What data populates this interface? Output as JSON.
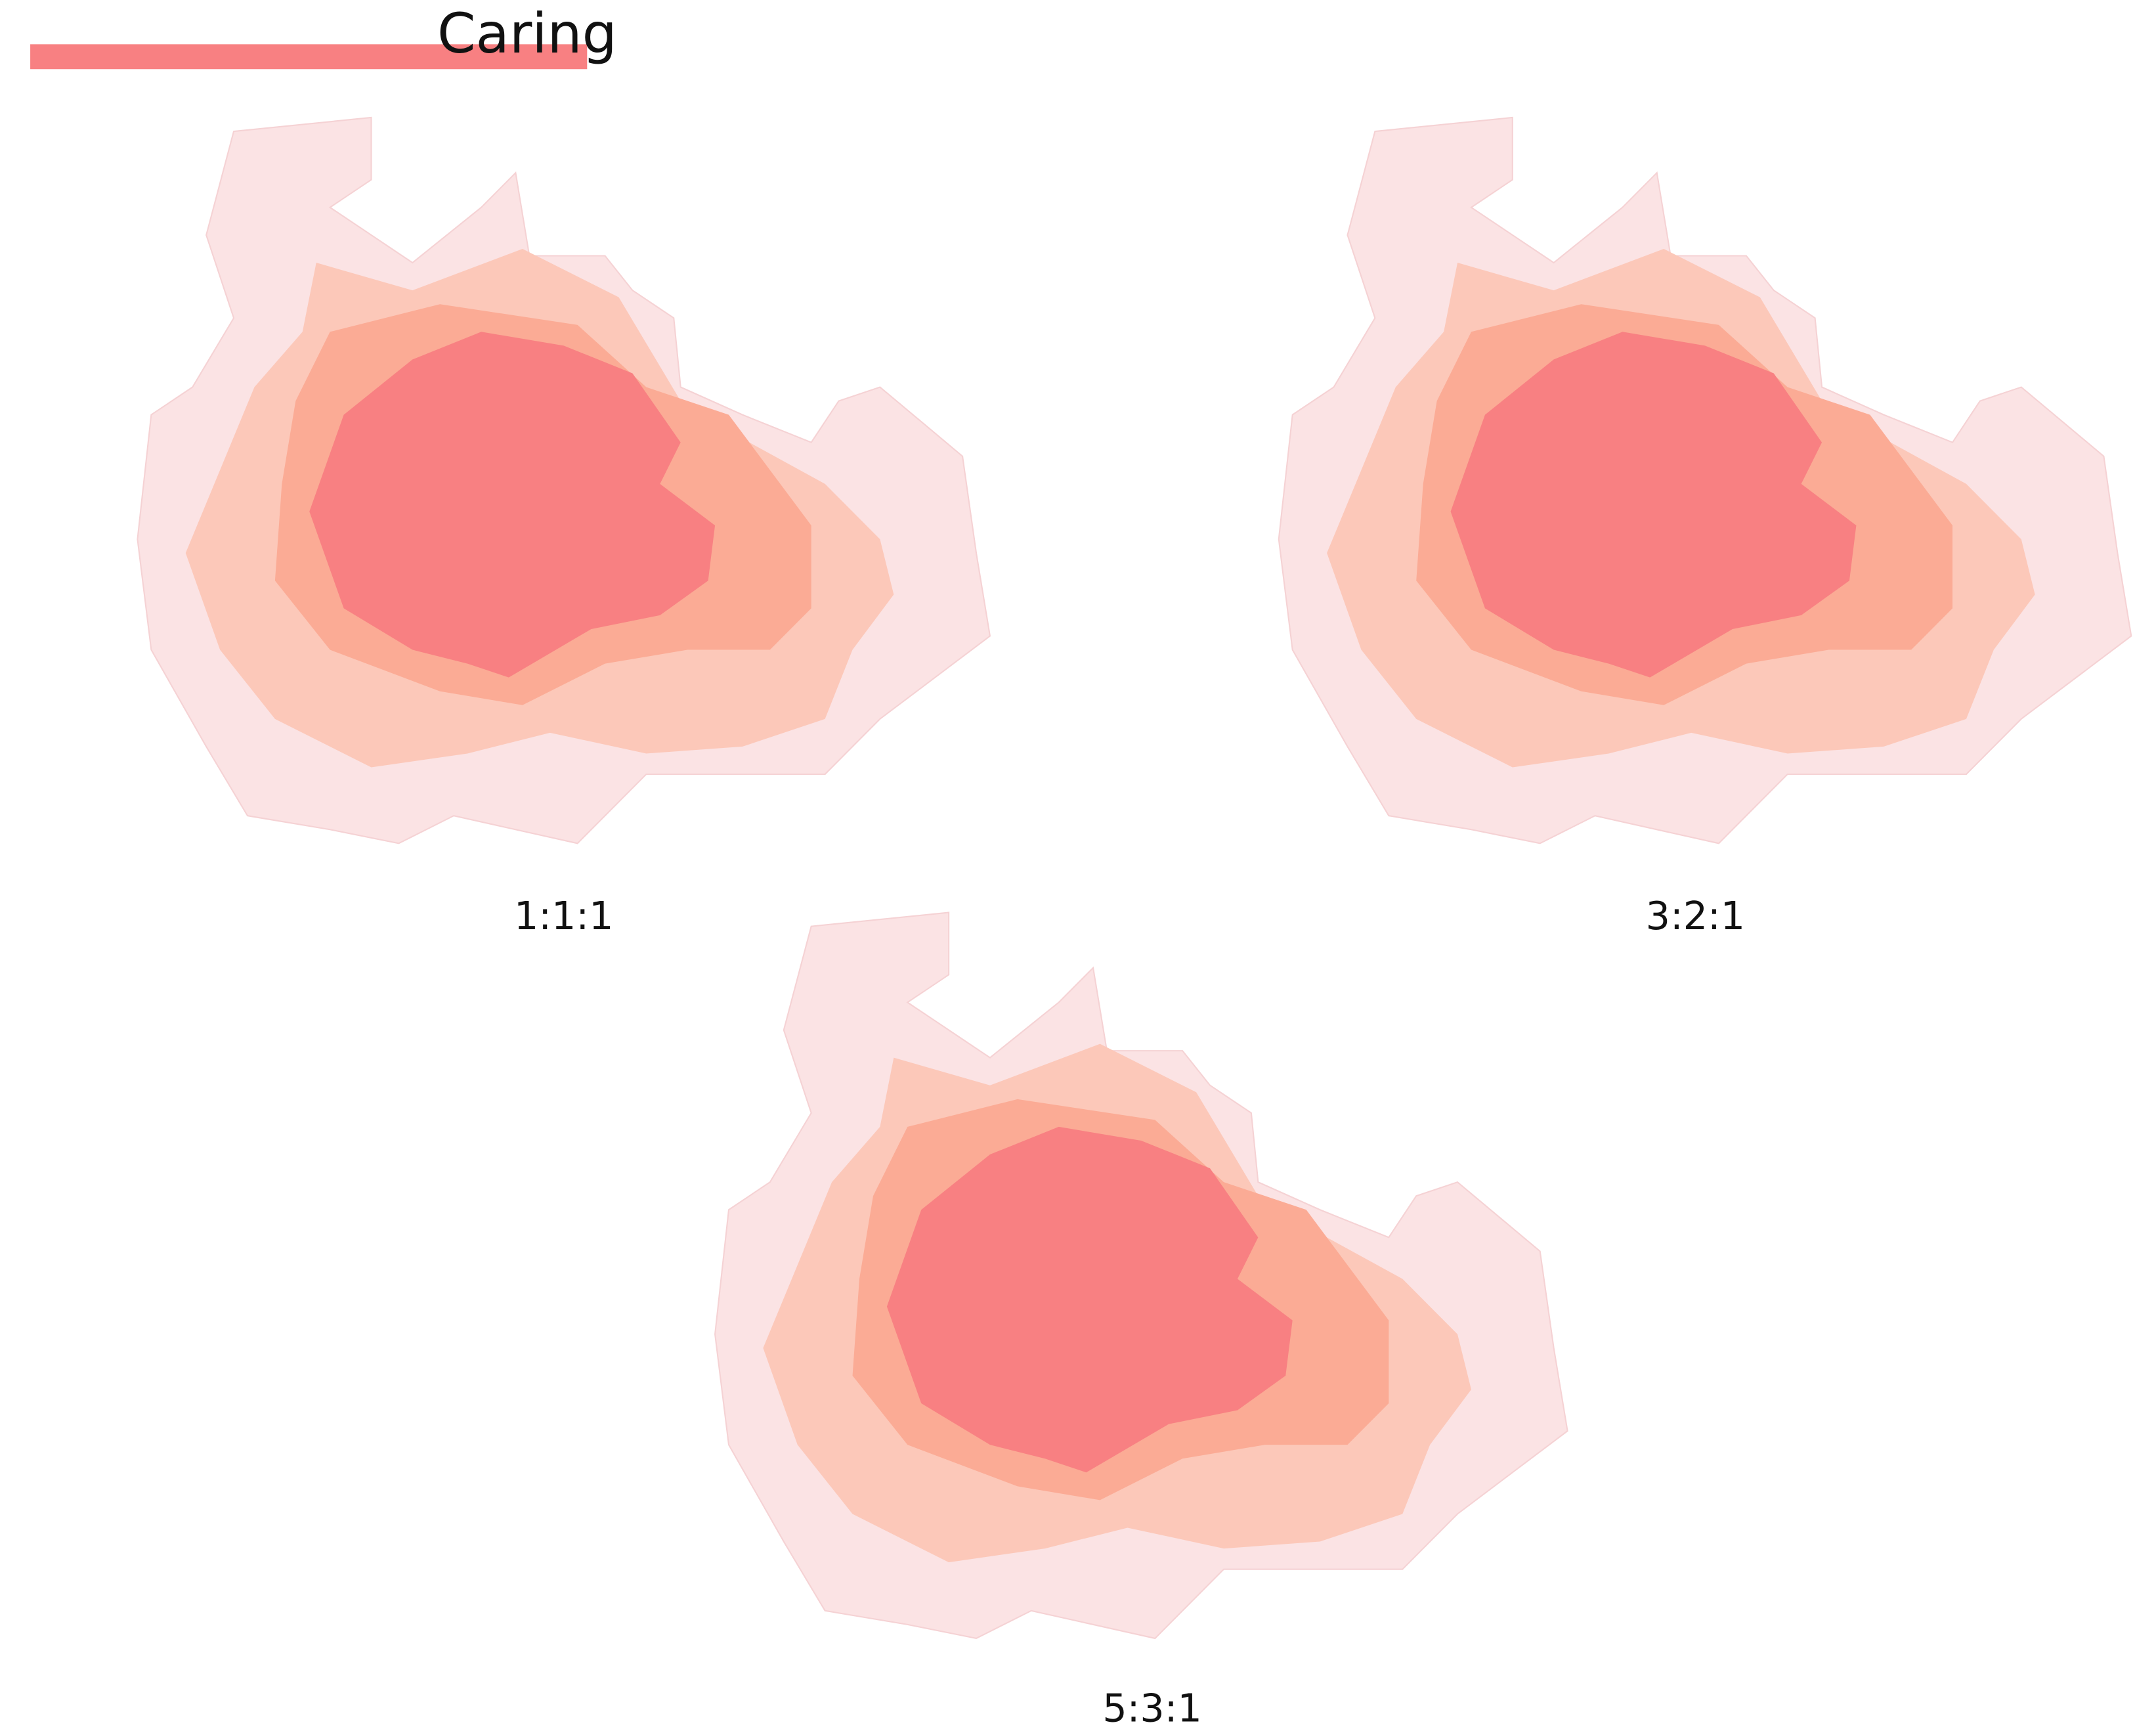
{
  "header": {
    "title": "Caring"
  },
  "panels": [
    {
      "label": "1:1:1"
    },
    {
      "label": "3:2:1"
    },
    {
      "label": "5:3:1"
    }
  ]
}
